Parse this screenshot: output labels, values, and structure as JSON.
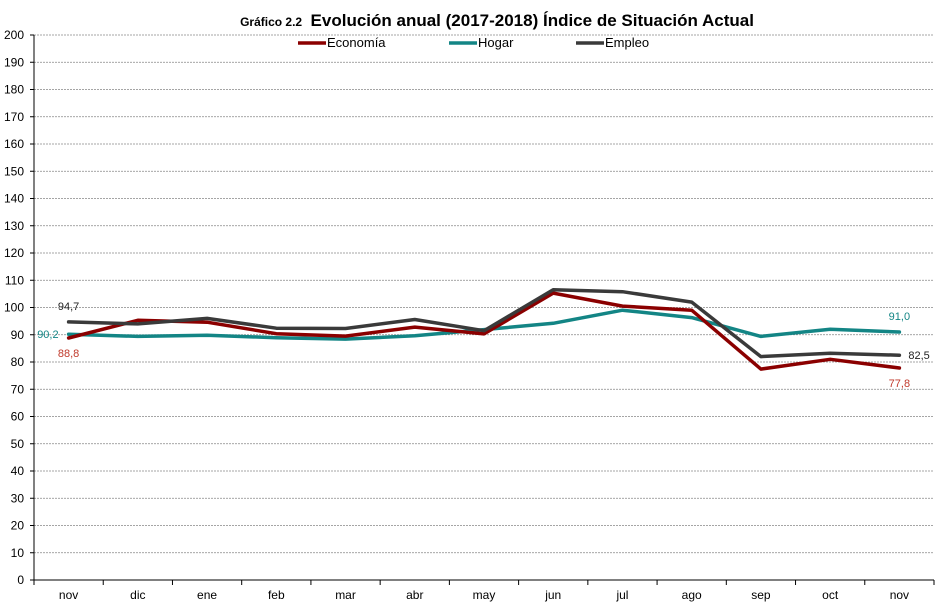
{
  "chart_data": {
    "type": "line",
    "title_prefix": "Gráfico 2.2",
    "title": "Evolución anual (2017-2018) Índice de Situación Actual",
    "categories": [
      "nov",
      "dic",
      "ene",
      "feb",
      "mar",
      "abr",
      "may",
      "jun",
      "jul",
      "ago",
      "sep",
      "oct",
      "nov"
    ],
    "ylim": [
      0,
      200
    ],
    "ytick_step": 10,
    "grid": true,
    "legend_position": "top-center",
    "series": [
      {
        "name": "Economía",
        "color": "#8B0000",
        "values": [
          88.8,
          95.3,
          94.6,
          90.4,
          89.5,
          92.8,
          90.3,
          105.3,
          100.5,
          99.0,
          77.4,
          81.0,
          77.8
        ]
      },
      {
        "name": "Hogar",
        "color": "#138585",
        "values": [
          90.2,
          89.4,
          89.8,
          88.9,
          88.4,
          89.6,
          91.9,
          94.2,
          99.0,
          96.3,
          89.4,
          92.0,
          91.0
        ]
      },
      {
        "name": "Empleo",
        "color": "#3a3a3a",
        "values": [
          94.7,
          94.0,
          96.0,
          92.4,
          92.3,
          95.6,
          91.5,
          106.5,
          105.8,
          102.0,
          82.0,
          83.2,
          82.5
        ]
      }
    ],
    "annotations": [
      {
        "series": "Empleo",
        "index": 0,
        "text": "94,7",
        "color": "#222222",
        "pos": "above"
      },
      {
        "series": "Hogar",
        "index": 0,
        "text": "90,2",
        "color": "#138585",
        "pos": "left"
      },
      {
        "series": "Economía",
        "index": 0,
        "text": "88,8",
        "color": "#c0392b",
        "pos": "below"
      },
      {
        "series": "Hogar",
        "index": 12,
        "text": "91,0",
        "color": "#138585",
        "pos": "above"
      },
      {
        "series": "Empleo",
        "index": 12,
        "text": "82,5",
        "color": "#222222",
        "pos": "right"
      },
      {
        "series": "Economía",
        "index": 12,
        "text": "77,8",
        "color": "#c0392b",
        "pos": "below"
      }
    ]
  }
}
